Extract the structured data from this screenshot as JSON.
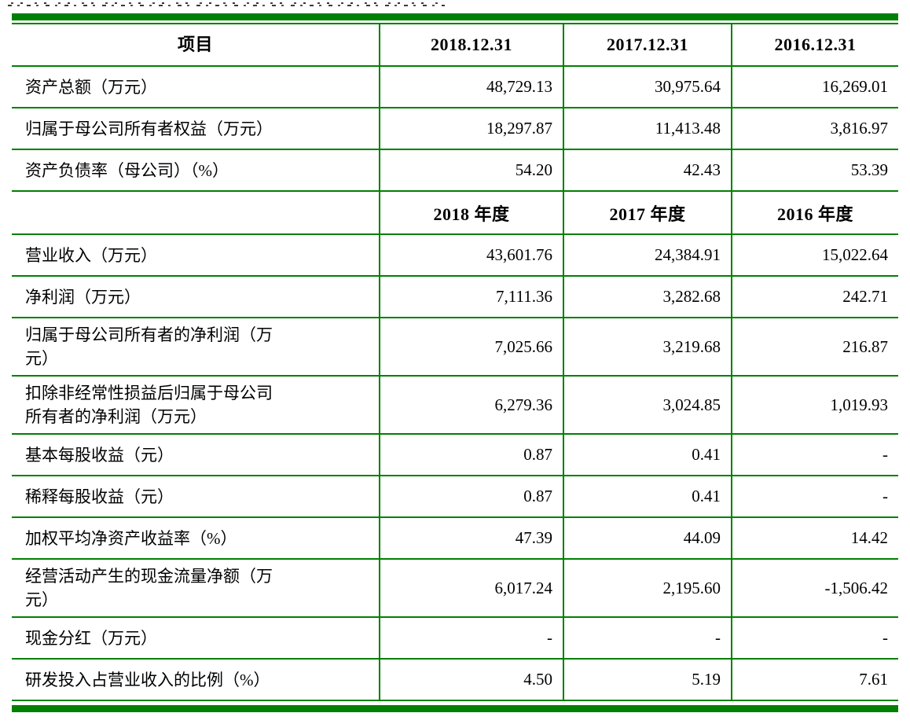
{
  "colors": {
    "table_green": "#008000",
    "text": "#000000",
    "background": "#ffffff"
  },
  "table": {
    "header_row1": {
      "label": "项目",
      "cols": [
        "2018.12.31",
        "2017.12.31",
        "2016.12.31"
      ]
    },
    "header_row2": {
      "label": "",
      "cols": [
        "2018 年度",
        "2017 年度",
        "2016 年度"
      ]
    },
    "rows_balance": [
      {
        "label": "资产总额（万元）",
        "values": [
          "48,729.13",
          "30,975.64",
          "16,269.01"
        ]
      },
      {
        "label": "归属于母公司所有者权益（万元）",
        "values": [
          "18,297.87",
          "11,413.48",
          "3,816.97"
        ]
      },
      {
        "label": "资产负债率（母公司）（%）",
        "values": [
          "54.20",
          "42.43",
          "53.39"
        ]
      }
    ],
    "rows_income": [
      {
        "label": "营业收入（万元）",
        "values": [
          "43,601.76",
          "24,384.91",
          "15,022.64"
        ]
      },
      {
        "label": "净利润（万元）",
        "values": [
          "7,111.36",
          "3,282.68",
          "242.71"
        ]
      },
      {
        "label": "归属于母公司所有者的净利润（万\n元）",
        "values": [
          "7,025.66",
          "3,219.68",
          "216.87"
        ]
      },
      {
        "label": "扣除非经常性损益后归属于母公司\n所有者的净利润（万元）",
        "values": [
          "6,279.36",
          "3,024.85",
          "1,019.93"
        ]
      },
      {
        "label": "基本每股收益（元）",
        "values": [
          "0.87",
          "0.41",
          "-"
        ]
      },
      {
        "label": "稀释每股收益（元）",
        "values": [
          "0.87",
          "0.41",
          "-"
        ]
      },
      {
        "label": "加权平均净资产收益率（%）",
        "values": [
          "47.39",
          "44.09",
          "14.42"
        ]
      },
      {
        "label": "经营活动产生的现金流量净额（万\n元）",
        "values": [
          "6,017.24",
          "2,195.60",
          "-1,506.42"
        ]
      },
      {
        "label": "现金分红（万元）",
        "values": [
          "-",
          "-",
          "-"
        ]
      },
      {
        "label": "研发投入占营业收入的比例（%）",
        "values": [
          "4.50",
          "5.19",
          "7.61"
        ]
      }
    ]
  }
}
